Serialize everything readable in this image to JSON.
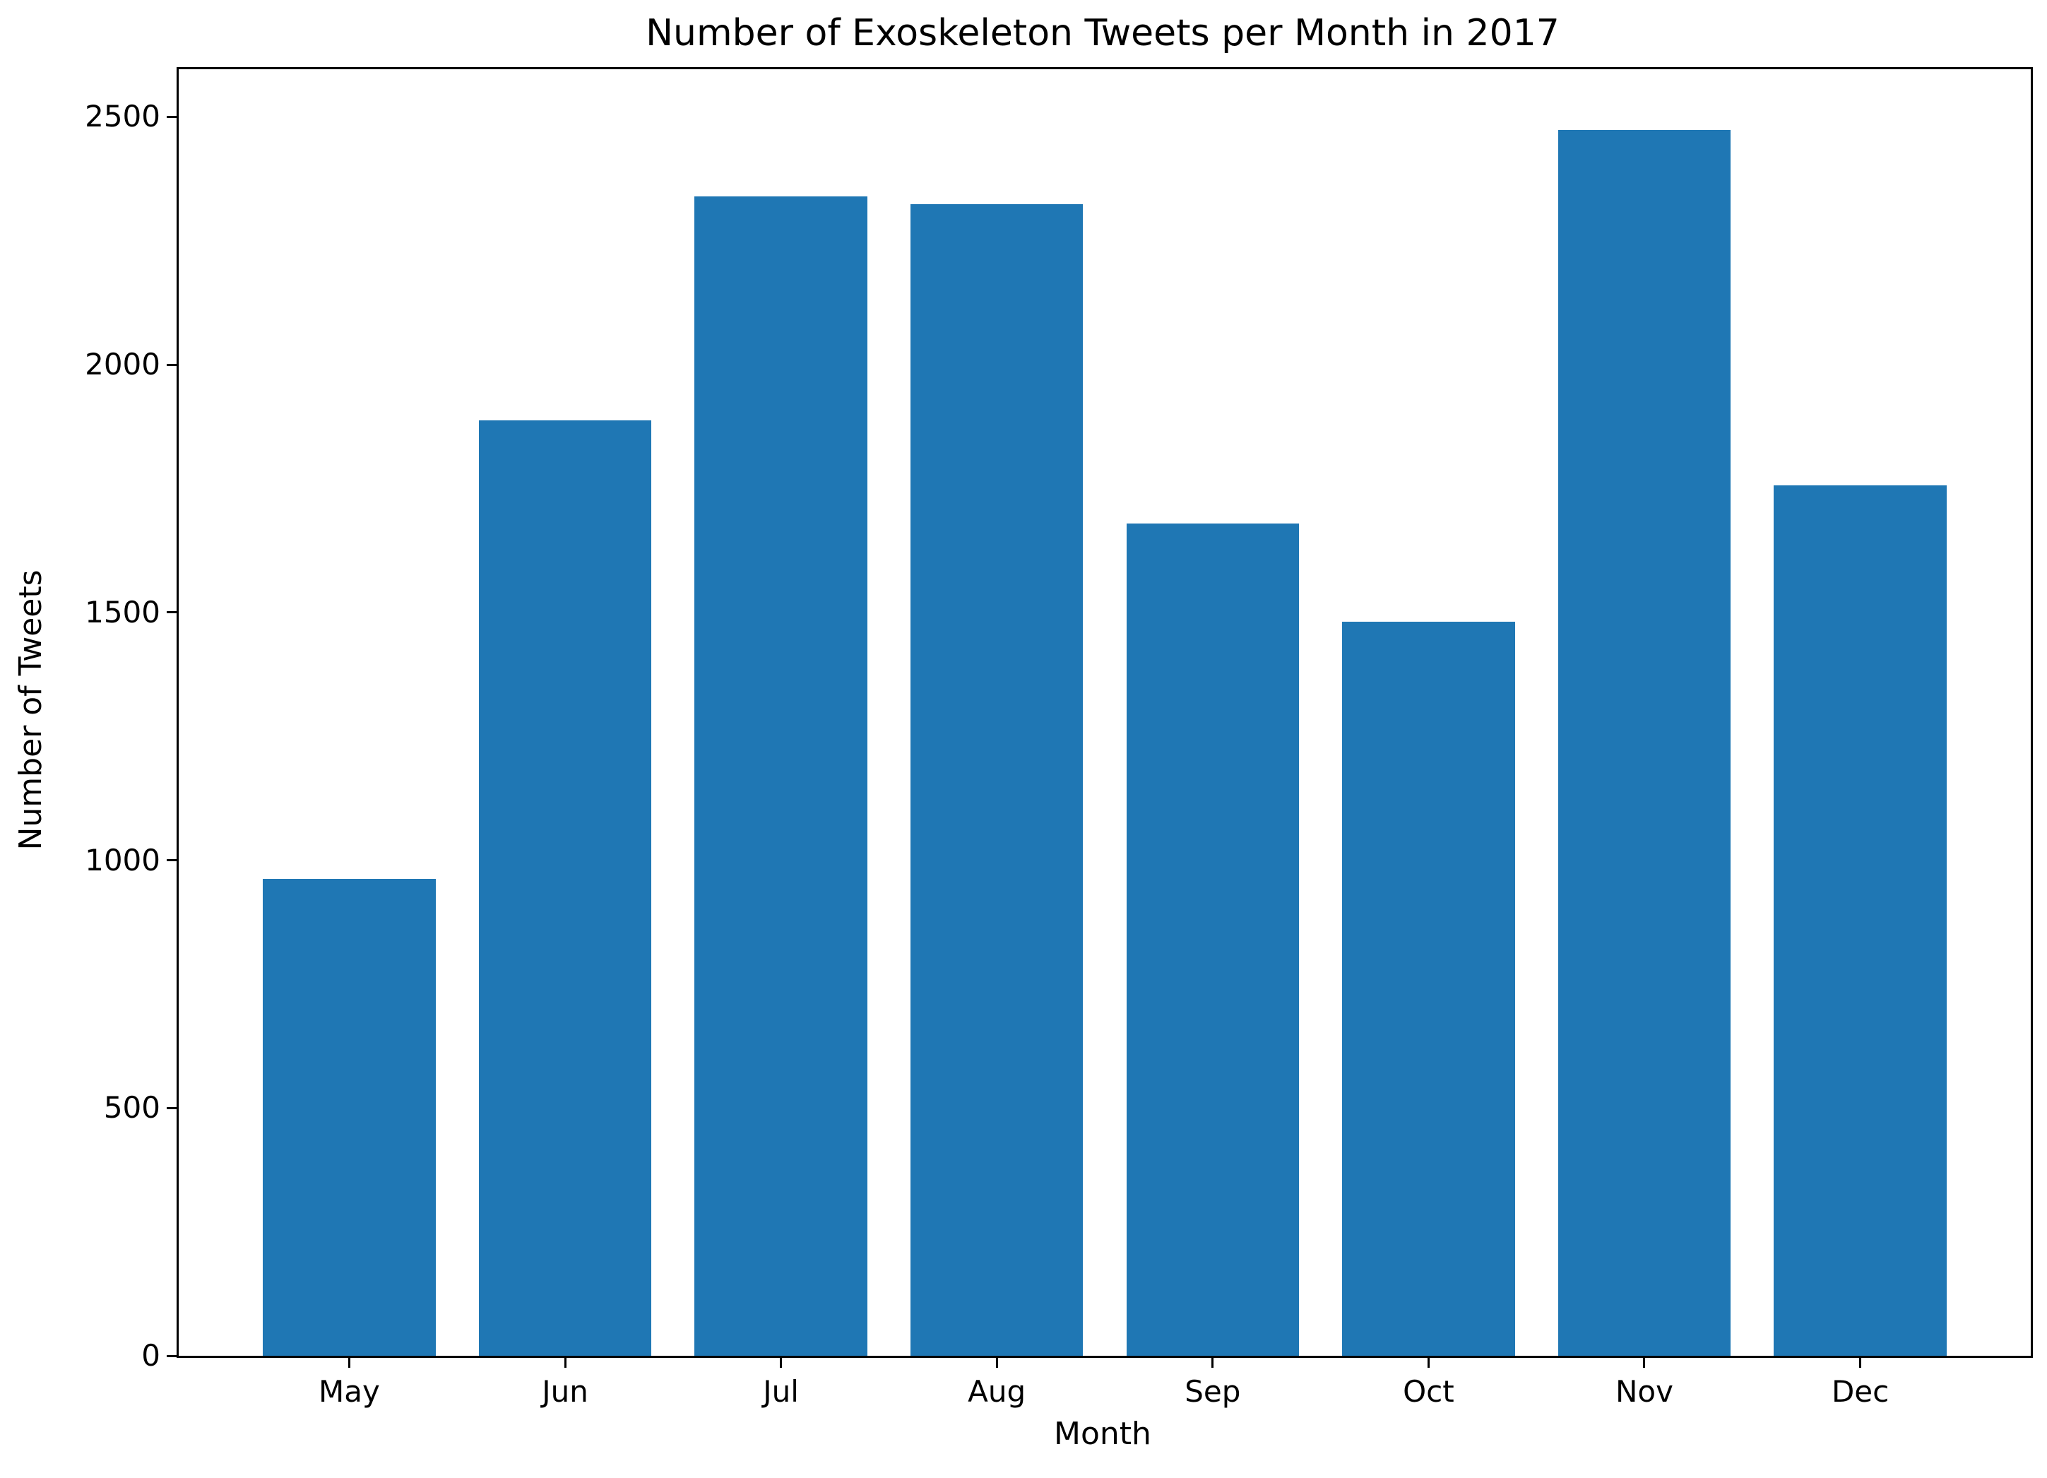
{
  "chart_data": {
    "type": "bar",
    "title": "Number of Exoskeleton Tweets per Month in 2017",
    "xlabel": "Month",
    "ylabel": "Number of Tweets",
    "categories": [
      "May",
      "Jun",
      "Jul",
      "Aug",
      "Sep",
      "Oct",
      "Nov",
      "Dec"
    ],
    "values": [
      962,
      1887,
      2340,
      2324,
      1680,
      1481,
      2474,
      1757
    ],
    "yticks": [
      0,
      500,
      1000,
      1500,
      2000,
      2500
    ],
    "ylim": [
      0,
      2596
    ],
    "xlim": [
      -0.79,
      7.79
    ],
    "bar_width": 0.8,
    "grid": false,
    "legend_position": "none",
    "colors": {
      "bar": "#1f77b4",
      "axis": "#000000",
      "text": "#000000",
      "background": "#ffffff"
    }
  }
}
